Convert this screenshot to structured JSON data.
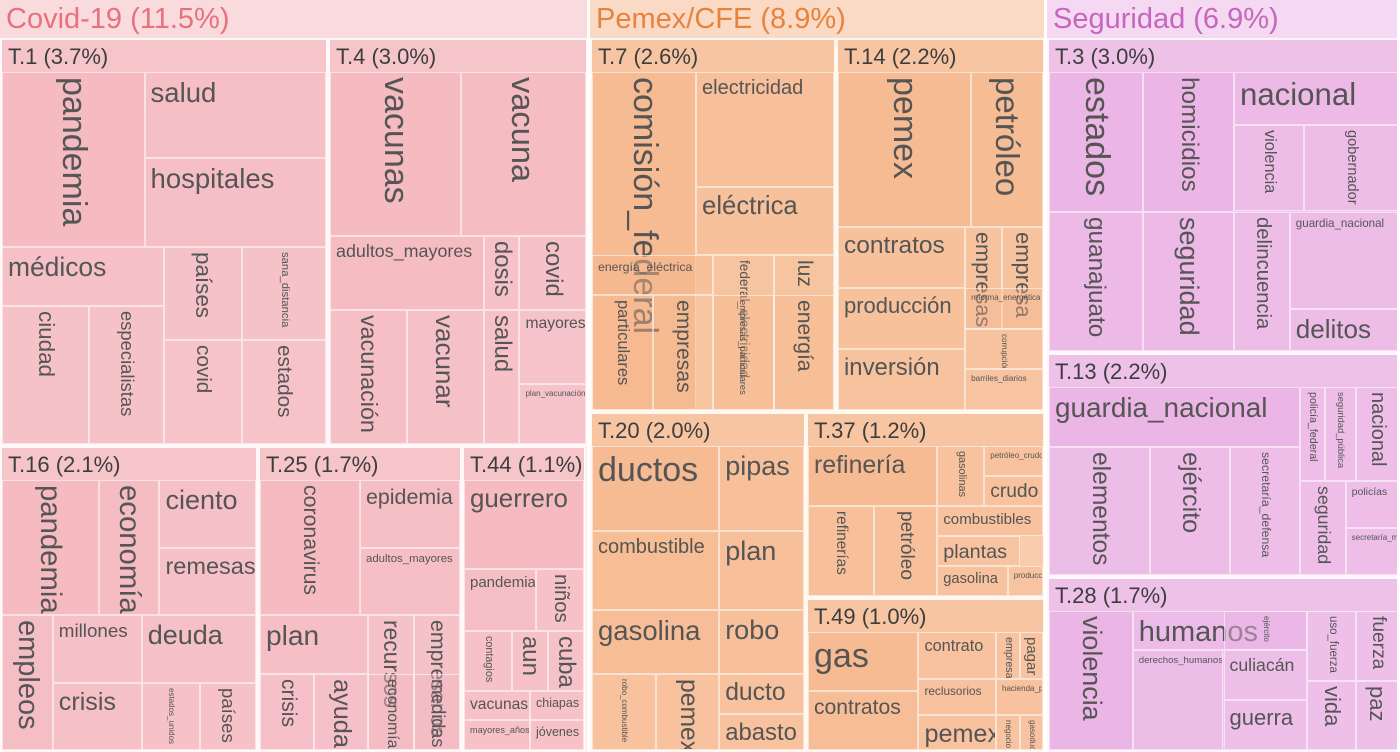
{
  "chart_data": {
    "type": "treemap",
    "groups": [
      {
        "name": "Covid-19 (11.5%)",
        "color": "#f4b6bd",
        "text_color": "#e8717e",
        "topics": [
          {
            "label": "T.1 (3.7%)",
            "words": [
              {
                "w": "pandemia",
                "v": 15
              },
              {
                "w": "salud",
                "v": 8
              },
              {
                "w": "hospitales",
                "v": 8
              },
              {
                "w": "médicos",
                "v": 7
              },
              {
                "w": "países",
                "v": 4
              },
              {
                "w": "sana_distancia",
                "v": 4
              },
              {
                "w": "ciudad",
                "v": 4
              },
              {
                "w": "especialistas",
                "v": 4
              },
              {
                "w": "covid",
                "v": 3
              },
              {
                "w": "estados",
                "v": 3
              }
            ]
          },
          {
            "label": "T.4 (3.0%)",
            "words": [
              {
                "w": "vacunas",
                "v": 9
              },
              {
                "w": "vacuna",
                "v": 8
              },
              {
                "w": "adultos_mayores",
                "v": 8
              },
              {
                "w": "dosis",
                "v": 3
              },
              {
                "w": "covid",
                "v": 3
              },
              {
                "w": "vacunación",
                "v": 5
              },
              {
                "w": "vacunar",
                "v": 4
              },
              {
                "w": "salud",
                "v": 3
              },
              {
                "w": "mayores",
                "v": 2
              },
              {
                "w": "plan_vacunación",
                "v": 2
              }
            ]
          },
          {
            "label": "T.16 (2.1%)",
            "words": [
              {
                "w": "pandemia",
                "v": 8
              },
              {
                "w": "economía",
                "v": 7
              },
              {
                "w": "ciento",
                "v": 4
              },
              {
                "w": "remesas",
                "v": 4
              },
              {
                "w": "empleos",
                "v": 5
              },
              {
                "w": "millones",
                "v": 4
              },
              {
                "w": "deuda",
                "v": 4
              },
              {
                "w": "crisis",
                "v": 4
              },
              {
                "w": "estados_unidos",
                "v": 3
              },
              {
                "w": "países",
                "v": 3
              }
            ]
          },
          {
            "label": "T.25 (1.7%)",
            "words": [
              {
                "w": "coronavirus",
                "v": 7
              },
              {
                "w": "epidemia",
                "v": 5
              },
              {
                "w": "adultos_mayores",
                "v": 4
              },
              {
                "w": "plan",
                "v": 4
              },
              {
                "w": "recursos",
                "v": 2
              },
              {
                "w": "empresarios",
                "v": 2
              },
              {
                "w": "crisis",
                "v": 3
              },
              {
                "w": "ayuda",
                "v": 3
              },
              {
                "w": "economía",
                "v": 2
              },
              {
                "w": "medidas",
                "v": 2
              }
            ]
          },
          {
            "label": "T.44 (1.1%)",
            "words": [
              {
                "w": "guerrero",
                "v": 6
              },
              {
                "w": "pandemia",
                "v": 4
              },
              {
                "w": "niños",
                "v": 2
              },
              {
                "w": "contagios",
                "v": 2
              },
              {
                "w": "aun",
                "v": 2
              },
              {
                "w": "cuba",
                "v": 2
              },
              {
                "w": "vacunas",
                "v": 2
              },
              {
                "w": "chiapas",
                "v": 2
              },
              {
                "w": "mayores_años",
                "v": 2
              },
              {
                "w": "jóvenes",
                "v": 2
              }
            ]
          }
        ]
      },
      {
        "name": "Pemex/CFE (8.9%)",
        "color": "#f5b78c",
        "text_color": "#e8833e",
        "topics": [
          {
            "label": "T.7 (2.6%)",
            "words": [
              {
                "w": "comisión_federal",
                "v": 14
              },
              {
                "w": "electricidad",
                "v": 8
              },
              {
                "w": "eléctrica",
                "v": 6
              },
              {
                "w": "energía_eléctrica",
                "v": 6
              },
              {
                "w": "federal_electricidad",
                "v": 3
              },
              {
                "w": "luz",
                "v": 3
              },
              {
                "w": "particulares",
                "v": 4
              },
              {
                "w": "empresas",
                "v": 3
              },
              {
                "w": "empresas_particulares",
                "v": 3
              },
              {
                "w": "energía",
                "v": 3
              }
            ]
          },
          {
            "label": "T.14 (2.2%)",
            "words": [
              {
                "w": "pemex",
                "v": 12
              },
              {
                "w": "petróleo",
                "v": 11
              },
              {
                "w": "contratos",
                "v": 5
              },
              {
                "w": "empresas",
                "v": 3
              },
              {
                "w": "empresa",
                "v": 3
              },
              {
                "w": "producción",
                "v": 5
              },
              {
                "w": "corrupción",
                "v": 3
              },
              {
                "w": "reforma_energética",
                "v": 2
              },
              {
                "w": "inversión",
                "v": 4
              },
              {
                "w": "barriles_diarios",
                "v": 2
              }
            ]
          },
          {
            "label": "T.20 (2.0%)",
            "words": [
              {
                "w": "ductos",
                "v": 8
              },
              {
                "w": "pipas",
                "v": 4
              },
              {
                "w": "combustible",
                "v": 7
              },
              {
                "w": "plan",
                "v": 4
              },
              {
                "w": "gasolina",
                "v": 6
              },
              {
                "w": "robo",
                "v": 4
              },
              {
                "w": "robo_combustible",
                "v": 3
              },
              {
                "w": "pemex",
                "v": 3
              },
              {
                "w": "ducto",
                "v": 3
              },
              {
                "w": "abasto",
                "v": 3
              }
            ]
          },
          {
            "label": "T.37 (1.2%)",
            "words": [
              {
                "w": "refinería",
                "v": 5
              },
              {
                "w": "gasolinas",
                "v": 2
              },
              {
                "w": "petróleo_crudo",
                "v": 2
              },
              {
                "w": "crudo",
                "v": 2
              },
              {
                "w": "refinerías",
                "v": 3
              },
              {
                "w": "petróleo",
                "v": 3
              },
              {
                "w": "combustibles",
                "v": 2
              },
              {
                "w": "plantas",
                "v": 1
              },
              {
                "w": "gasolina",
                "v": 2
              },
              {
                "w": "producción",
                "v": 1
              }
            ]
          },
          {
            "label": "T.49 (1.0%)",
            "words": [
              {
                "w": "gas",
                "v": 5
              },
              {
                "w": "contrato",
                "v": 2
              },
              {
                "w": "empresa",
                "v": 1
              },
              {
                "w": "pagar",
                "v": 1
              },
              {
                "w": "reclusorios",
                "v": 2
              },
              {
                "w": "hacienda_pública",
                "v": 2
              },
              {
                "w": "contratos",
                "v": 4
              },
              {
                "w": "pemex",
                "v": 2
              },
              {
                "w": "negocio",
                "v": 1
              },
              {
                "w": "gasoducto",
                "v": 1
              }
            ]
          }
        ]
      },
      {
        "name": "Seguridad (6.9%)",
        "color": "#eab2e4",
        "text_color": "#c667be",
        "topics": [
          {
            "label": "T.3 (3.0%)",
            "words": [
              {
                "w": "estados",
                "v": 9
              },
              {
                "w": "homicidios",
                "v": 9
              },
              {
                "w": "nacional",
                "v": 7
              },
              {
                "w": "violencia",
                "v": 4
              },
              {
                "w": "gobernador",
                "v": 4
              },
              {
                "w": "guanajuato",
                "v": 7
              },
              {
                "w": "seguridad",
                "v": 6
              },
              {
                "w": "delincuencia",
                "v": 4
              },
              {
                "w": "guardia_nacional",
                "v": 4
              },
              {
                "w": "delitos",
                "v": 4
              }
            ]
          },
          {
            "label": "T.13 (2.2%)",
            "words": [
              {
                "w": "guardia_nacional",
                "v": 10
              },
              {
                "w": "policía_federal",
                "v": 3
              },
              {
                "w": "seguridad_pública",
                "v": 3
              },
              {
                "w": "nacional",
                "v": 3
              },
              {
                "w": "elementos",
                "v": 5
              },
              {
                "w": "ejército",
                "v": 4
              },
              {
                "w": "secretaría_defensa",
                "v": 3
              },
              {
                "w": "seguridad",
                "v": 3
              },
              {
                "w": "policías",
                "v": 3
              },
              {
                "w": "secretaría_marina",
                "v": 3
              }
            ]
          },
          {
            "label": "T.28 (1.7%)",
            "words": [
              {
                "w": "violencia",
                "v": 8
              },
              {
                "w": "humanos",
                "v": 5
              },
              {
                "w": "ejército",
                "v": 3
              },
              {
                "w": "uso_fuerza",
                "v": 2
              },
              {
                "w": "fuerza",
                "v": 2
              },
              {
                "w": "culiacán",
                "v": 3
              },
              {
                "w": "vida",
                "v": 2
              },
              {
                "w": "paz",
                "v": 2
              },
              {
                "w": "derechos_humanos",
                "v": 4
              },
              {
                "w": "guerra",
                "v": 2
              }
            ]
          }
        ]
      }
    ]
  }
}
